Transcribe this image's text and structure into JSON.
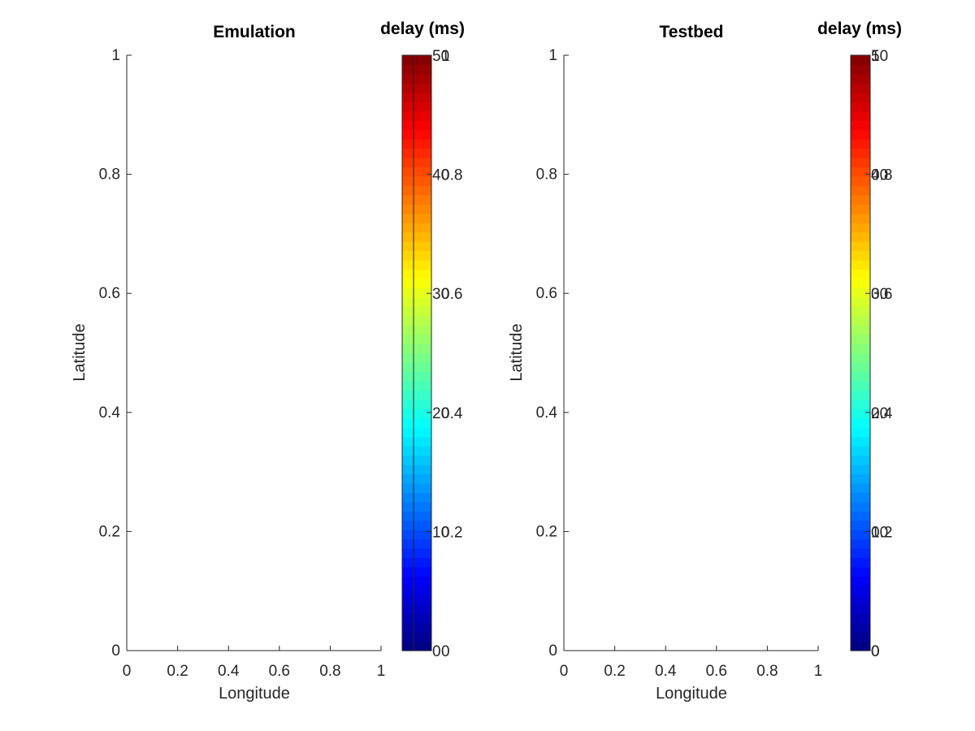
{
  "chart_data": [
    {
      "type": "scatter",
      "title": "Emulation",
      "xlabel": "Longitude",
      "ylabel": "Latitude",
      "xlim": [
        0,
        1
      ],
      "ylim": [
        0,
        1
      ],
      "x_ticks": [
        "0",
        "0.2",
        "0.4",
        "0.6",
        "0.8",
        "1"
      ],
      "y_ticks": [
        "0",
        "0.2",
        "0.4",
        "0.6",
        "0.8",
        "1"
      ],
      "points": [],
      "grid": false,
      "colorbar": {
        "label": "delay (ms)",
        "colormap": "jet",
        "range": [
          0,
          50
        ],
        "ticks": [
          "0",
          "10",
          "20",
          "30",
          "40",
          "50"
        ],
        "secondary_ticks": [
          "0",
          "0.2",
          "0.4",
          "0.6",
          "0.8",
          "1"
        ]
      }
    },
    {
      "type": "scatter",
      "title": "Testbed",
      "xlabel": "Longitude",
      "ylabel": "Latitude",
      "xlim": [
        0,
        1
      ],
      "ylim": [
        0,
        1
      ],
      "x_ticks": [
        "0",
        "0.2",
        "0.4",
        "0.6",
        "0.8",
        "1"
      ],
      "y_ticks": [
        "0",
        "0.2",
        "0.4",
        "0.6",
        "0.8",
        "1"
      ],
      "points": [],
      "grid": false,
      "colorbar": {
        "label": "delay (ms)",
        "colormap": "jet",
        "range": [
          0,
          50
        ],
        "ticks": [
          "0",
          "10",
          "20",
          "30",
          "40",
          "50"
        ],
        "secondary_ticks": [
          "0",
          "0.2",
          "0.4",
          "0.6",
          "0.8",
          "1"
        ]
      }
    }
  ]
}
